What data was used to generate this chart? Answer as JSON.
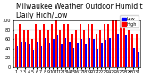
{
  "title": "Milwaukee Weather Outdoor Humidity",
  "subtitle": "Daily High/Low",
  "high_values": [
    72,
    93,
    80,
    80,
    61,
    93,
    80,
    93,
    80,
    93,
    100,
    80,
    93,
    93,
    72,
    80,
    93,
    80,
    93,
    93,
    72,
    80,
    93,
    93,
    100,
    100,
    100,
    93,
    80,
    72,
    72
  ],
  "low_values": [
    45,
    55,
    52,
    48,
    36,
    55,
    45,
    62,
    50,
    60,
    68,
    48,
    62,
    55,
    42,
    50,
    60,
    48,
    62,
    60,
    40,
    50,
    58,
    62,
    70,
    72,
    75,
    68,
    52,
    42,
    32
  ],
  "high_color": "#ff0000",
  "low_color": "#0000ff",
  "background_color": "#ffffff",
  "ylim": [
    0,
    100
  ],
  "ylabel": "",
  "title_fontsize": 5.5,
  "tick_fontsize": 3.5,
  "bar_width": 0.38,
  "legend_high": "High",
  "legend_low": "Low",
  "yticks": [
    0,
    20,
    40,
    60,
    80,
    100
  ]
}
